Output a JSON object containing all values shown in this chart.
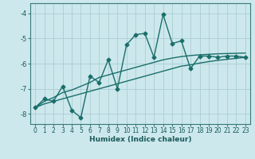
{
  "xlabel": "Humidex (Indice chaleur)",
  "background_color": "#cce8ec",
  "line_color": "#1a6e6a",
  "grid_color": "#aacdd4",
  "x_values": [
    0,
    1,
    2,
    3,
    4,
    5,
    6,
    7,
    8,
    9,
    10,
    11,
    12,
    13,
    14,
    15,
    16,
    17,
    18,
    19,
    20,
    21,
    22,
    23
  ],
  "y_jagged": [
    -7.75,
    -7.4,
    -7.5,
    -6.9,
    -7.85,
    -8.15,
    -6.5,
    -6.75,
    -5.85,
    -7.0,
    -5.25,
    -4.85,
    -4.8,
    -5.75,
    -4.05,
    -5.2,
    -5.1,
    -6.2,
    -5.7,
    -5.7,
    -5.75,
    -5.7,
    -5.7,
    -5.75
  ],
  "y_smooth_upper": [
    -7.75,
    -7.5,
    -7.35,
    -7.15,
    -7.05,
    -6.9,
    -6.75,
    -6.55,
    -6.45,
    -6.35,
    -6.25,
    -6.15,
    -6.05,
    -5.95,
    -5.85,
    -5.78,
    -5.72,
    -5.68,
    -5.65,
    -5.63,
    -5.61,
    -5.6,
    -5.59,
    -5.58
  ],
  "y_smooth_lower": [
    -7.75,
    -7.6,
    -7.5,
    -7.4,
    -7.3,
    -7.2,
    -7.1,
    -7.0,
    -6.9,
    -6.8,
    -6.7,
    -6.6,
    -6.5,
    -6.4,
    -6.3,
    -6.2,
    -6.1,
    -6.05,
    -5.98,
    -5.92,
    -5.87,
    -5.83,
    -5.79,
    -5.75
  ],
  "ylim": [
    -8.4,
    -3.6
  ],
  "xlim": [
    -0.5,
    23.5
  ],
  "yticks": [
    -8,
    -7,
    -6,
    -5,
    -4
  ],
  "xticks": [
    0,
    1,
    2,
    3,
    4,
    5,
    6,
    7,
    8,
    9,
    10,
    11,
    12,
    13,
    14,
    15,
    16,
    17,
    18,
    19,
    20,
    21,
    22,
    23
  ],
  "marker": "D",
  "markersize": 2.5,
  "linewidth_jagged": 1.0,
  "linewidth_smooth": 1.0,
  "tick_fontsize": 5.5,
  "label_fontsize": 6.5
}
